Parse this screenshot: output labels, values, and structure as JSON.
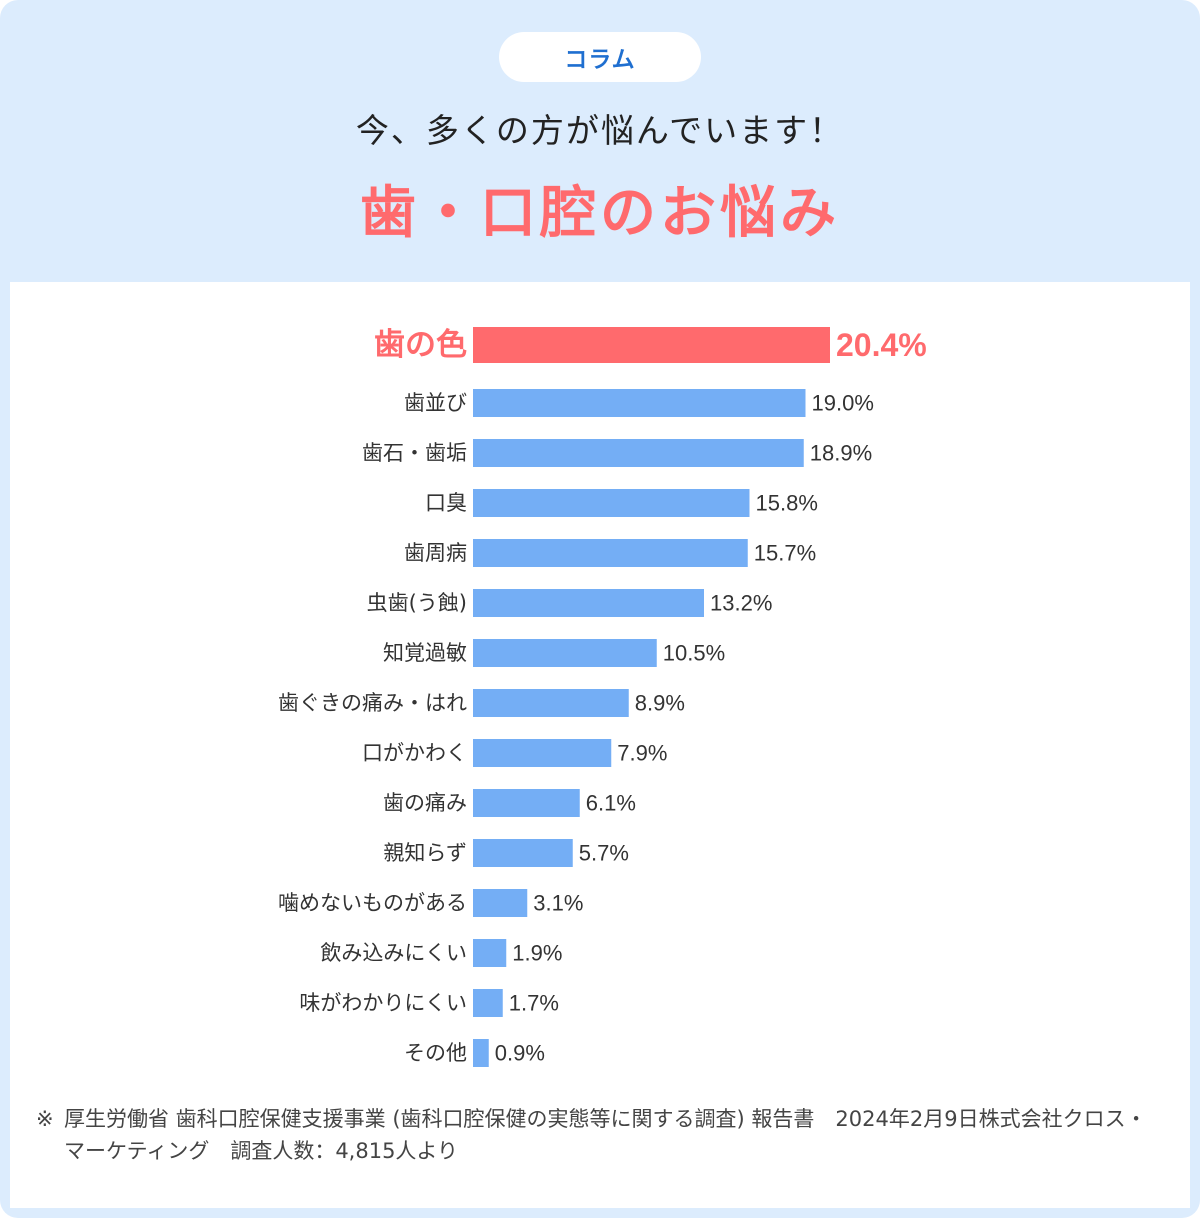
{
  "header": {
    "badge": "コラム",
    "subtitle": "今、多くの方が悩んでいます！",
    "title": "歯・口腔のお悩み"
  },
  "colors": {
    "background": "#dcecfd",
    "badge_text": "#1f6fd0",
    "highlight": "#ff6a6d",
    "bar": "#74aef5",
    "label": "#333333"
  },
  "chart_data": {
    "type": "bar",
    "orientation": "horizontal",
    "categories": [
      "歯の色",
      "歯並び",
      "歯石・歯垢",
      "口臭",
      "歯周病",
      "虫歯(う蝕)",
      "知覚過敏",
      "歯ぐきの痛み・はれ",
      "口がかわく",
      "歯の痛み",
      "親知らず",
      "噛めないものがある",
      "飲み込みにくい",
      "味がわかりにくい",
      "その他"
    ],
    "values": [
      20.4,
      19.0,
      18.9,
      15.8,
      15.7,
      13.2,
      10.5,
      8.9,
      7.9,
      6.1,
      5.7,
      3.1,
      1.9,
      1.7,
      0.9
    ],
    "value_labels": [
      "20.4%",
      "19.0%",
      "18.9%",
      "15.8%",
      "15.7%",
      "13.2%",
      "10.5%",
      "8.9%",
      "7.9%",
      "6.1%",
      "5.7%",
      "3.1%",
      "1.9%",
      "1.7%",
      "0.9%"
    ],
    "highlight_index": 0,
    "unit": "%",
    "xlim": [
      0,
      20.4
    ],
    "grid": false,
    "legend": "none"
  },
  "footnote": {
    "mark": "※",
    "text": "厚生労働省 歯科口腔保健支援事業 (歯科口腔保健の実態等に関する調査) 報告書　2024年2月9日株式会社クロス・マーケティング　調査人数：4,815人より"
  }
}
